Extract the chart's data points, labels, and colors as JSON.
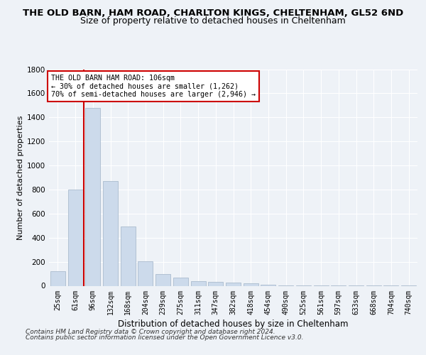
{
  "title": "THE OLD BARN, HAM ROAD, CHARLTON KINGS, CHELTENHAM, GL52 6ND",
  "subtitle": "Size of property relative to detached houses in Cheltenham",
  "xlabel": "Distribution of detached houses by size in Cheltenham",
  "ylabel": "Number of detached properties",
  "categories": [
    "25sqm",
    "61sqm",
    "96sqm",
    "132sqm",
    "168sqm",
    "204sqm",
    "239sqm",
    "275sqm",
    "311sqm",
    "347sqm",
    "382sqm",
    "418sqm",
    "454sqm",
    "490sqm",
    "525sqm",
    "561sqm",
    "597sqm",
    "633sqm",
    "668sqm",
    "704sqm",
    "740sqm"
  ],
  "values": [
    120,
    800,
    1480,
    870,
    490,
    205,
    100,
    65,
    40,
    30,
    25,
    20,
    10,
    5,
    3,
    2,
    2,
    1,
    1,
    1,
    1
  ],
  "bar_color": "#ccdaeb",
  "bar_edge_color": "#aabcce",
  "vline_color": "#cc0000",
  "annotation_text": "THE OLD BARN HAM ROAD: 106sqm\n← 30% of detached houses are smaller (1,262)\n70% of semi-detached houses are larger (2,946) →",
  "annotation_box_color": "#cc0000",
  "ylim": [
    0,
    1800
  ],
  "yticks": [
    0,
    200,
    400,
    600,
    800,
    1000,
    1200,
    1400,
    1600,
    1800
  ],
  "background_color": "#eef2f7",
  "footer_line1": "Contains HM Land Registry data © Crown copyright and database right 2024.",
  "footer_line2": "Contains public sector information licensed under the Open Government Licence v3.0."
}
